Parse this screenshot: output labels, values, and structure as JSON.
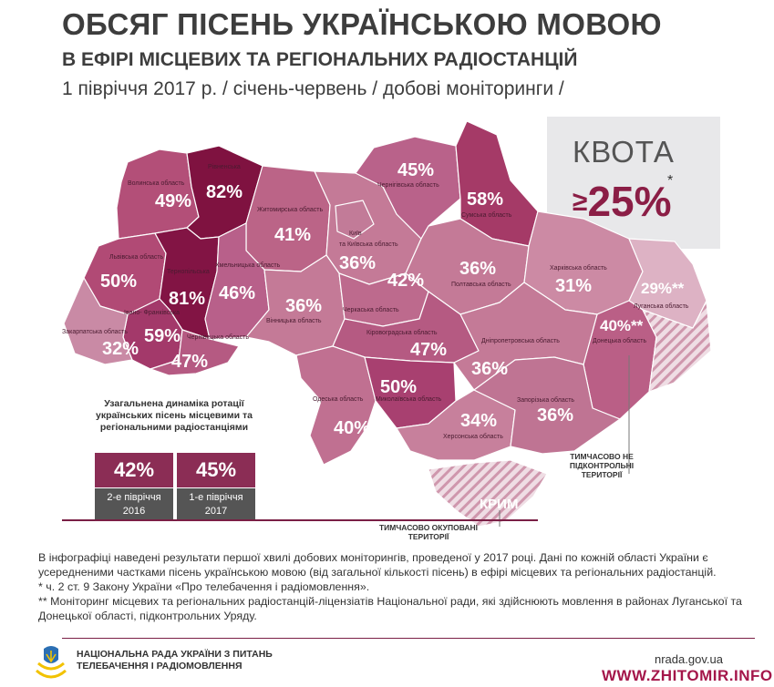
{
  "title": {
    "line1": "ОБСЯГ ПІСЕНЬ УКРАЇНСЬКОЮ МОВОЮ",
    "line2": "В ЕФІРІ МІСЦЕВИХ ТА РЕГІОНАЛЬНИХ РАДІОСТАНЦІЙ",
    "line3": "1 півріччя 2017 р.  / січень-червень / добові моніторинги /"
  },
  "quota": {
    "label": "КВОТА",
    "sign": "≥",
    "value": "25%",
    "note_mark": "*"
  },
  "regions": [
    {
      "id": "volyn",
      "name": "Волинська область",
      "value": "49%",
      "share": 49,
      "color": "#b34f78"
    },
    {
      "id": "rivne",
      "name": "Рівненська",
      "value": "82%",
      "share": 82,
      "color": "#7f1240"
    },
    {
      "id": "zhytomyr",
      "name": "Житомирська область",
      "value": "41%",
      "share": 41,
      "color": "#bb6487"
    },
    {
      "id": "kyiv",
      "name": "Київ",
      "value": "",
      "share": null,
      "color": "#c27b98"
    },
    {
      "id": "kyiv-obl",
      "name": "та Київська область",
      "value": "36%",
      "share": 36,
      "color": "#c47a97"
    },
    {
      "id": "chernihiv",
      "name": "Чернігівська область",
      "value": "45%",
      "share": 45,
      "color": "#b9628a"
    },
    {
      "id": "sumy",
      "name": "Сумська область",
      "value": "58%",
      "share": 58,
      "color": "#a53a67"
    },
    {
      "id": "lviv",
      "name": "Львівська область",
      "value": "50%",
      "share": 50,
      "color": "#b14a75"
    },
    {
      "id": "ternopil",
      "name": "Тернопільська",
      "value": "81%",
      "share": 81,
      "color": "#821444"
    },
    {
      "id": "khmelnytskyi",
      "name": "Хмельницька область",
      "value": "46%",
      "share": 46,
      "color": "#b8608a"
    },
    {
      "id": "vinnytsia",
      "name": "Вінницька область",
      "value": "36%",
      "share": 36,
      "color": "#c47a97"
    },
    {
      "id": "cherkasy",
      "name": "Черкаська область",
      "value": "42%",
      "share": 42,
      "color": "#bd6a8d"
    },
    {
      "id": "poltava",
      "name": "Полтавська область",
      "value": "36%",
      "share": 36,
      "color": "#c47a97"
    },
    {
      "id": "kharkiv",
      "name": "Харківська область",
      "value": "31%",
      "share": 31,
      "color": "#cc8aa4"
    },
    {
      "id": "luhansk",
      "name": "Луганська область",
      "value": "29%**",
      "share": 29,
      "color": "#ddb2c4"
    },
    {
      "id": "donetsk",
      "name": "Донецька область",
      "value": "40%**",
      "share": 40,
      "color": "#ba5f86"
    },
    {
      "id": "ivano-frankivsk",
      "name": "Івано- Франківська",
      "value": "59%",
      "share": 59,
      "color": "#a3396a"
    },
    {
      "id": "zakarpattia",
      "name": "Закарпатська область",
      "value": "32%",
      "share": 32,
      "color": "#c98aa5"
    },
    {
      "id": "chernivtsi",
      "name": "Чернівецька область",
      "value": "47%",
      "share": 47,
      "color": "#b55a82"
    },
    {
      "id": "kirovohrad",
      "name": "Кіровоградська область",
      "value": "47%",
      "share": 47,
      "color": "#b55a82"
    },
    {
      "id": "dnipro",
      "name": "Дніпропетровська область",
      "value": "36%",
      "share": 36,
      "color": "#c47a97"
    },
    {
      "id": "mykolaiv",
      "name": "Миколаївська область",
      "value": "50%",
      "share": 50,
      "color": "#a84070"
    },
    {
      "id": "odesa",
      "name": "Одеська область",
      "value": "40%",
      "share": 40,
      "color": "#c07091"
    },
    {
      "id": "kherson",
      "name": "Херсонська область",
      "value": "34%",
      "share": 34,
      "color": "#c7809c"
    },
    {
      "id": "zaporizhzhia",
      "name": "Запорізька область",
      "value": "36%",
      "share": 36,
      "color": "#bf7493"
    },
    {
      "id": "crimea",
      "name": "КРИМ",
      "value": "",
      "share": null,
      "color": "#ead3dc"
    }
  ],
  "labels": {
    "occupied_east": "ТИМЧАСОВО НЕ ПІДКОНТРОЛЬНІ ТЕРИТОРІЇ",
    "occupied_crimea": "ТИМЧАСОВО ОКУПОВАНІ ТЕРИТОРІЇ"
  },
  "dynamics": {
    "title": "Узагальнена динаміка ротації українських пісень місцевими та регіональними радіостанціями",
    "items": [
      {
        "value": "42%",
        "period": "2-е півріччя 2016"
      },
      {
        "value": "45%",
        "period": "1-е півріччя 2017"
      }
    ]
  },
  "notes": {
    "main": "В інфографіці наведені результати першої хвилі добових моніторингів, проведеної у 2017 році. Дані по кожній області України є усередненими частками пісень українською мовою (від загальної кількості пісень) в ефірі місцевих та регіональних радіостанцій.",
    "star1": "* ч. 2 ст. 9 Закону України «Про телебачення і радіомовлення».",
    "star2": "** Моніторинг місцевих та регіональних радіостанцій-ліцензіатів Національної ради, які здійснюють мовлення в районах Луганської та Донецької області, підконтрольних Уряду."
  },
  "footer": {
    "org_line1": "НАЦІОНАЛЬНА РАДА УКРАЇНИ З ПИТАНЬ",
    "org_line2": "ТЕЛЕБАЧЕННЯ І РАДІОМОВЛЕННЯ",
    "url": "nrada.gov.ua",
    "brand": "WWW.ZHITOMIR.INFO"
  }
}
